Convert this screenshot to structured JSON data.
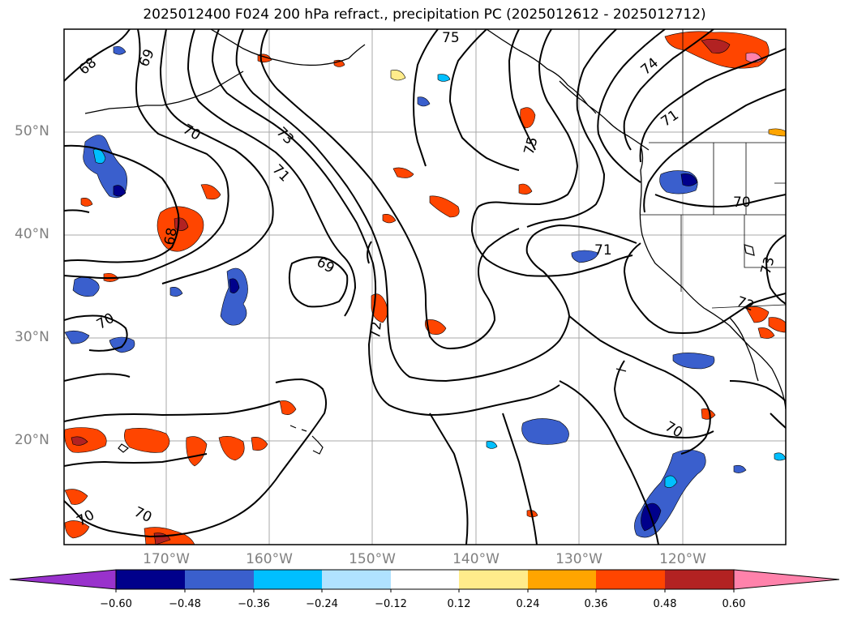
{
  "title": "2025012400 F024 200 hPa refract., precipitation PC (2025012612 - 2025012712)",
  "lat_labels": [
    "50°N",
    "40°N",
    "30°N",
    "20°N"
  ],
  "lon_labels": [
    "170°W",
    "160°W",
    "150°W",
    "140°W",
    "130°W",
    "120°W"
  ],
  "contour_labels": [
    "68",
    "69",
    "70",
    "73",
    "71",
    "75",
    "75",
    "74",
    "71",
    "70",
    "68",
    "69",
    "70",
    "72",
    "71",
    "72",
    "73",
    "70",
    "70",
    "70"
  ],
  "colorbar": {
    "ticks": [
      "−0.60",
      "−0.48",
      "−0.36",
      "−0.24",
      "−0.12",
      "0.12",
      "0.24",
      "0.36",
      "0.48",
      "0.60"
    ],
    "colors": [
      "#9932cc",
      "#00008b",
      "#3a5fcd",
      "#00bfff",
      "#b0e2ff",
      "#ffffff",
      "#ffec8b",
      "#ffa500",
      "#ff4500",
      "#b22222",
      "#ff82ab"
    ]
  },
  "colors": {
    "contour": "#000000",
    "grid": "#a0a0a0",
    "coast": "#000000",
    "axis_text": "#808080"
  }
}
